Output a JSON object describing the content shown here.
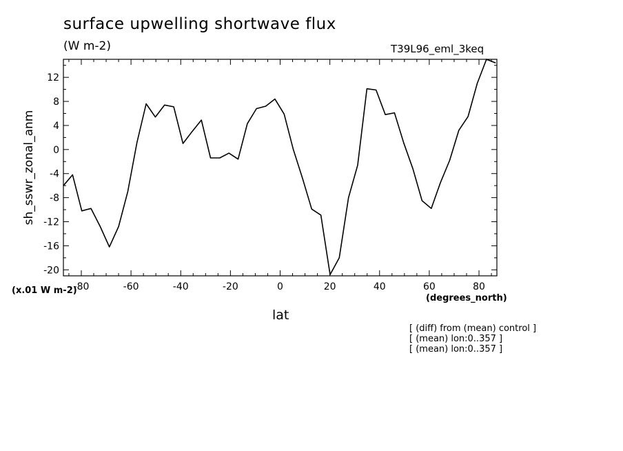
{
  "chart_data": {
    "type": "line",
    "title": "surface upwelling shortwave flux",
    "units": "(W m-2)",
    "run_label": "T39L96_eml_3keq",
    "ylabel": "sh_sswr_zonal_anm",
    "yunits": "(x.01 W m-2)",
    "xlabel": "lat",
    "xunits": "(degrees_north)",
    "xlim": [
      -87.2,
      87.2
    ],
    "ylim": [
      -21,
      15
    ],
    "xticks": [
      -80,
      -60,
      -40,
      -20,
      0,
      20,
      40,
      60,
      80
    ],
    "xtick_labels": [
      "-80",
      "-60",
      "-40",
      "-20",
      "0",
      "20",
      "40",
      "60",
      "80"
    ],
    "yticks": [
      -20,
      -16,
      -12,
      -8,
      -4,
      0,
      4,
      8,
      12
    ],
    "ytick_labels": [
      "-20",
      "-16",
      "-12",
      "-8",
      "-4",
      "0",
      "4",
      "8",
      "12"
    ],
    "grid": false,
    "series": [
      {
        "x": [
          -87.2,
          -83.5,
          -79.8,
          -76.1,
          -72.4,
          -68.7,
          -65.0,
          -61.3,
          -57.6,
          -53.9,
          -50.2,
          -46.5,
          -42.8,
          -39.1,
          -35.4,
          -31.7,
          -28.0,
          -24.3,
          -20.6,
          -16.9,
          -13.2,
          -9.5,
          -5.8,
          -2.1,
          1.6,
          5.3,
          9.0,
          12.7,
          16.4,
          20.1,
          23.8,
          27.5,
          31.2,
          34.9,
          38.6,
          42.3,
          46.0,
          49.7,
          53.4,
          57.1,
          60.8,
          64.5,
          68.2,
          71.9,
          75.6,
          79.3,
          83.0,
          86.7
        ],
        "values": [
          -6.0,
          -4.2,
          -10.2,
          -9.8,
          -12.8,
          -16.2,
          -12.8,
          -7.0,
          1.2,
          7.6,
          5.4,
          7.4,
          7.1,
          1.0,
          3.0,
          4.9,
          -1.4,
          -1.4,
          -0.6,
          -1.6,
          4.3,
          6.8,
          7.2,
          8.4,
          5.9,
          0.0,
          -4.8,
          -9.9,
          -10.9,
          -20.8,
          -18.0,
          -8.0,
          -2.6,
          10.1,
          9.9,
          5.8,
          6.1,
          1.1,
          -3.2,
          -8.5,
          -9.8,
          -5.5,
          -1.8,
          3.2,
          5.5,
          11.0,
          15.0,
          14.4
        ]
      }
    ],
    "notes": [
      "[ (diff) from (mean) control ]",
      "[ (mean) lon:0..357 ]",
      "[ (mean) lon:0..357 ]"
    ]
  }
}
